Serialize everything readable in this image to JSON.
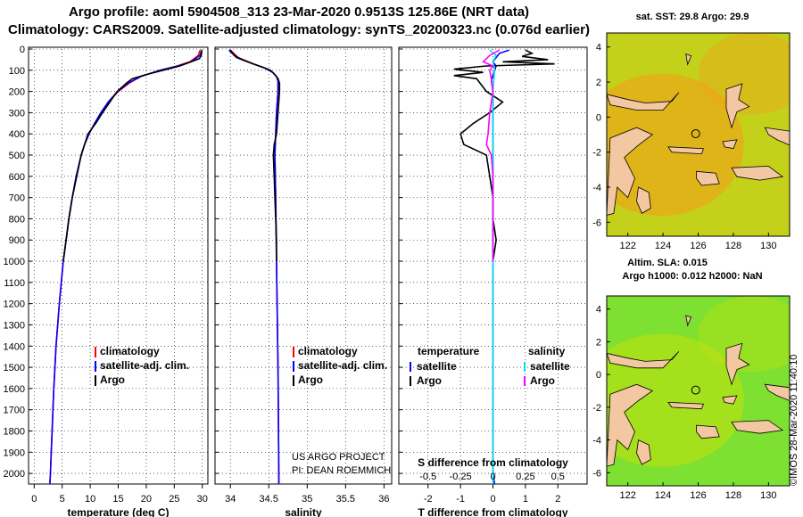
{
  "header": {
    "line1": "Argo profile: aoml 5904508_313 23-Mar-2020 0.9513S 125.86E (NRT data)",
    "line2": "Climatology: CARS2009. Satellite-adjusted climatology: synTS_20200323.nc (0.076d earlier)"
  },
  "colors": {
    "climatology": "#ff0000",
    "satellite": "#0000ff",
    "argo": "#000000",
    "sat_salinity": "#00e5ee",
    "argo_salinity": "#ff00ff",
    "land": "#f3c7a1"
  },
  "depth_axis": {
    "range": [
      0,
      2050
    ],
    "ticks": [
      0,
      100,
      200,
      300,
      400,
      500,
      600,
      700,
      800,
      900,
      1000,
      1100,
      1200,
      1300,
      1400,
      1500,
      1600,
      1700,
      1800,
      1900,
      2000
    ]
  },
  "chart_data": [
    {
      "type": "line",
      "name": "temperature",
      "xlabel": "temperature (deg C)",
      "xlim": [
        -1,
        31
      ],
      "xticks": [
        0,
        5,
        10,
        15,
        20,
        25,
        30
      ],
      "legend": [
        "climatology",
        "satellite-adj. clim.",
        "Argo"
      ],
      "series": [
        {
          "name": "climatology",
          "depth": [
            5,
            30,
            60,
            80,
            100,
            130,
            160,
            200,
            250,
            300,
            350,
            400,
            450,
            500,
            600,
            700,
            800,
            900,
            1000,
            1200,
            1400,
            1600,
            1800,
            2000,
            2050
          ],
          "values": [
            29.6,
            29.3,
            27.8,
            25.5,
            22.5,
            19.0,
            17.0,
            15.0,
            13.3,
            12.0,
            10.8,
            9.8,
            9.0,
            8.4,
            7.5,
            6.8,
            6.2,
            5.7,
            5.2,
            4.5,
            3.9,
            3.5,
            3.2,
            2.9,
            2.8
          ]
        },
        {
          "name": "satellite-adj. clim.",
          "depth": [
            5,
            30,
            60,
            80,
            100,
            130,
            160,
            200,
            250,
            300,
            350,
            400,
            450,
            500,
            600,
            700,
            800,
            900,
            1000,
            1200,
            1400,
            1600,
            1800,
            2000,
            2050
          ],
          "values": [
            29.9,
            29.6,
            28.0,
            25.7,
            22.5,
            19.0,
            16.8,
            14.9,
            13.2,
            11.9,
            10.8,
            9.8,
            9.0,
            8.4,
            7.5,
            6.8,
            6.2,
            5.7,
            5.2,
            4.5,
            3.9,
            3.5,
            3.2,
            2.9,
            2.8
          ]
        },
        {
          "name": "Argo",
          "depth": [
            5,
            30,
            45,
            60,
            80,
            100,
            120,
            140,
            160,
            200,
            250,
            300,
            350,
            400,
            450,
            500,
            600,
            700,
            800,
            900,
            1000
          ],
          "values": [
            29.9,
            29.8,
            29.5,
            28.0,
            26.0,
            23.0,
            20.0,
            17.5,
            16.5,
            14.8,
            13.5,
            12.2,
            11.0,
            9.6,
            9.0,
            8.4,
            7.6,
            6.8,
            6.2,
            5.7,
            5.2
          ]
        }
      ]
    },
    {
      "type": "line",
      "name": "salinity",
      "xlabel": "salinity",
      "xlim": [
        33.8,
        36.1
      ],
      "xticks": [
        34,
        34.5,
        35,
        35.5,
        36
      ],
      "legend": [
        "climatology",
        "satellite-adj. clim.",
        "Argo"
      ],
      "annotation": [
        "US ARGO PROJECT",
        "PI: DEAN ROEMMICH"
      ],
      "series": [
        {
          "name": "climatology",
          "depth": [
            5,
            40,
            70,
            90,
            110,
            130,
            150,
            200,
            300,
            500,
            700,
            1000,
            1500,
            2000,
            2050
          ],
          "values": [
            34.0,
            34.1,
            34.3,
            34.45,
            34.55,
            34.6,
            34.62,
            34.62,
            34.6,
            34.58,
            34.59,
            34.6,
            34.62,
            34.63,
            34.63
          ]
        },
        {
          "name": "satellite-adj. clim.",
          "depth": [
            5,
            40,
            70,
            90,
            110,
            130,
            150,
            200,
            300,
            500,
            700,
            1000,
            1500,
            2000,
            2050
          ],
          "values": [
            33.98,
            34.08,
            34.3,
            34.45,
            34.55,
            34.6,
            34.62,
            34.62,
            34.6,
            34.58,
            34.59,
            34.6,
            34.62,
            34.63,
            34.63
          ]
        },
        {
          "name": "Argo",
          "depth": [
            5,
            30,
            50,
            70,
            90,
            100,
            120,
            140,
            160,
            200,
            300,
            400,
            450,
            500,
            600,
            700,
            800,
            900,
            1000
          ],
          "values": [
            34.0,
            34.05,
            34.15,
            34.3,
            34.45,
            34.52,
            34.58,
            34.62,
            34.64,
            34.64,
            34.62,
            34.6,
            34.57,
            34.56,
            34.57,
            34.58,
            34.59,
            34.6,
            34.6
          ]
        }
      ]
    },
    {
      "type": "line",
      "name": "difference",
      "xlabel": "T difference from climatology",
      "x2label": "S difference from climatology",
      "xlim": [
        -2.9,
        2.9
      ],
      "xticks": [
        -2,
        -1,
        0,
        1,
        2
      ],
      "x2ticks": [
        "-0.5",
        "-0.25",
        "0",
        "0.25",
        "0.5"
      ],
      "legend_left_title": "temperature",
      "legend_right_title": "salinity",
      "legend": [
        "satellite",
        "Argo"
      ],
      "series": [
        {
          "name": "T satellite",
          "depth": [
            5,
            20,
            40,
            60,
            80,
            100,
            150,
            200,
            300,
            500,
            800,
            1000,
            1500,
            2000,
            2050
          ],
          "values": [
            0.5,
            0.2,
            0.1,
            0.0,
            0.1,
            0.05,
            -0.05,
            0.0,
            0.0,
            0.0,
            0.0,
            0.0,
            0.0,
            0.0,
            0.05
          ]
        },
        {
          "name": "T Argo",
          "depth": [
            5,
            20,
            35,
            50,
            60,
            70,
            80,
            95,
            110,
            125,
            140,
            160,
            200,
            250,
            300,
            350,
            400,
            450,
            500,
            600,
            700,
            800,
            900,
            1000
          ],
          "values": [
            1.0,
            1.2,
            0.9,
            1.7,
            0.3,
            1.9,
            -0.2,
            -1.2,
            -0.3,
            -1.2,
            -0.5,
            -0.4,
            -0.2,
            0.3,
            -0.1,
            -0.6,
            -1.0,
            -0.9,
            -0.2,
            -0.1,
            0.0,
            0.0,
            0.1,
            0.0
          ]
        },
        {
          "name": "S satellite",
          "depth": [
            5,
            30,
            60,
            100,
            200,
            400,
            700,
            1000,
            1500,
            2000,
            2050
          ],
          "values": [
            -0.1,
            0.1,
            0.0,
            0.05,
            0.0,
            0.0,
            0.0,
            0.0,
            0.0,
            0.0,
            0.0
          ]
        },
        {
          "name": "S Argo",
          "depth": [
            5,
            30,
            60,
            80,
            100,
            140,
            200,
            300,
            400,
            450,
            500,
            600,
            700,
            800,
            900,
            1000
          ],
          "values": [
            0.2,
            -0.1,
            -0.3,
            0.0,
            -0.1,
            -0.05,
            0.0,
            -0.1,
            -0.15,
            -0.2,
            -0.05,
            0.0,
            0.0,
            0.0,
            0.0,
            0.0
          ]
        }
      ]
    }
  ],
  "maps": {
    "top_title": "sat. SST: 29.8 Argo: 29.9",
    "bottom_title_1": "Altim. SLA: 0.015",
    "bottom_title_2": "Argo h1000: 0.012 h2000: NaN",
    "xticks": [
      122,
      124,
      126,
      128,
      130
    ],
    "yticks": [
      4,
      2,
      0,
      -2,
      -4,
      -6
    ],
    "xlim": [
      120.8,
      131.2
    ],
    "ylim": [
      -6.8,
      4.8
    ],
    "float_position": {
      "lon": 125.86,
      "lat": -0.95
    }
  },
  "credit": "©IMOS 28-Mar-2020 11:40:10"
}
